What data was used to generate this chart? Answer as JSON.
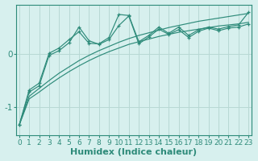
{
  "xlabel": "Humidex (Indice chaleur)",
  "bg_color": "#d7f0ee",
  "line_color": "#2e8b7a",
  "grid_color": "#b8d8d4",
  "x_values": [
    0,
    1,
    2,
    3,
    4,
    5,
    6,
    7,
    8,
    9,
    10,
    11,
    12,
    13,
    14,
    15,
    16,
    17,
    18,
    19,
    20,
    21,
    22,
    23
  ],
  "smooth1": [
    -1.35,
    -0.85,
    -0.72,
    -0.58,
    -0.45,
    -0.33,
    -0.22,
    -0.12,
    -0.03,
    0.05,
    0.12,
    0.19,
    0.24,
    0.29,
    0.34,
    0.38,
    0.42,
    0.45,
    0.48,
    0.51,
    0.54,
    0.56,
    0.58,
    0.61
  ],
  "smooth2": [
    -1.35,
    -0.8,
    -0.65,
    -0.5,
    -0.36,
    -0.24,
    -0.12,
    -0.02,
    0.07,
    0.15,
    0.23,
    0.3,
    0.36,
    0.41,
    0.46,
    0.51,
    0.55,
    0.59,
    0.63,
    0.66,
    0.69,
    0.72,
    0.75,
    0.78
  ],
  "jagged1": [
    -1.35,
    -0.72,
    -0.6,
    -0.02,
    0.07,
    0.22,
    0.52,
    0.26,
    0.19,
    0.28,
    0.55,
    0.73,
    0.2,
    0.33,
    0.48,
    0.38,
    0.47,
    0.32,
    0.44,
    0.5,
    0.45,
    0.5,
    0.52,
    0.58
  ],
  "jagged2": [
    -1.35,
    -0.68,
    -0.55,
    0.02,
    0.12,
    0.28,
    0.43,
    0.21,
    0.2,
    0.32,
    0.76,
    0.74,
    0.24,
    0.36,
    0.52,
    0.4,
    0.52,
    0.36,
    0.47,
    0.52,
    0.48,
    0.53,
    0.56,
    0.8
  ],
  "ylim": [
    -1.55,
    0.95
  ],
  "yticks": [
    -1,
    0
  ],
  "xlim": [
    -0.3,
    23.3
  ],
  "xtick_fontsize": 6.5,
  "ytick_fontsize": 7.5,
  "xlabel_fontsize": 8
}
